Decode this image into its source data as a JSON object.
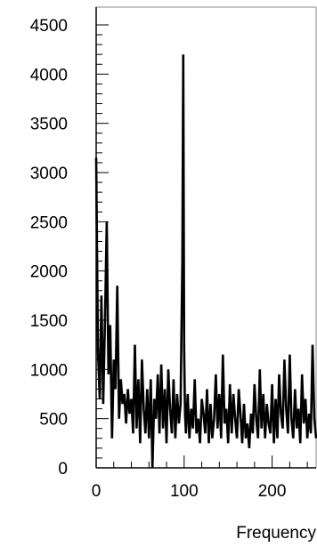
{
  "chart_data": {
    "type": "line",
    "title": "",
    "xlabel": "Frequency",
    "ylabel": "",
    "xlim": [
      0,
      250
    ],
    "ylim": [
      0,
      4600
    ],
    "x_ticks": [
      0,
      100,
      200
    ],
    "x_tick_labels": [
      "0",
      "100",
      "200"
    ],
    "y_ticks": [
      0,
      500,
      1000,
      1500,
      2000,
      2500,
      3000,
      3500,
      4000,
      4500
    ],
    "y_tick_labels": [
      "0",
      "500",
      "1000",
      "1500",
      "2000",
      "2500",
      "3000",
      "3500",
      "4000",
      "4500"
    ],
    "grid": false,
    "series": [
      {
        "color": "#000000",
        "x": [
          0,
          2,
          4,
          6,
          8,
          10,
          12,
          14,
          16,
          18,
          20,
          22,
          24,
          26,
          28,
          30,
          32,
          34,
          36,
          38,
          40,
          42,
          44,
          46,
          48,
          50,
          52,
          54,
          56,
          58,
          60,
          62,
          64,
          66,
          68,
          70,
          72,
          74,
          76,
          78,
          80,
          82,
          84,
          86,
          88,
          90,
          92,
          94,
          96,
          98,
          99,
          100,
          101,
          102,
          104,
          106,
          108,
          110,
          112,
          114,
          116,
          118,
          120,
          122,
          124,
          126,
          128,
          130,
          132,
          134,
          136,
          138,
          140,
          142,
          144,
          146,
          148,
          150,
          152,
          154,
          156,
          158,
          160,
          162,
          164,
          166,
          168,
          170,
          172,
          174,
          176,
          178,
          180,
          182,
          184,
          186,
          188,
          190,
          192,
          194,
          196,
          198,
          200,
          202,
          204,
          206,
          208,
          210,
          212,
          214,
          216,
          218,
          220,
          222,
          224,
          226,
          228,
          230,
          232,
          234,
          236,
          238,
          240,
          242,
          244,
          246,
          248,
          250
        ],
        "values": [
          3150,
          1200,
          700,
          1750,
          650,
          1500,
          2500,
          950,
          1450,
          300,
          1100,
          800,
          1850,
          500,
          900,
          650,
          750,
          450,
          800,
          550,
          700,
          350,
          1250,
          400,
          900,
          250,
          1100,
          600,
          350,
          800,
          300,
          900,
          0,
          700,
          500,
          950,
          350,
          1050,
          400,
          800,
          250,
          1000,
          600,
          350,
          900,
          300,
          750,
          450,
          650,
          2100,
          4200,
          1200,
          550,
          350,
          750,
          300,
          600,
          400,
          900,
          350,
          500,
          250,
          700,
          550,
          350,
          800,
          250,
          650,
          300,
          500,
          950,
          400,
          750,
          300,
          1150,
          450,
          600,
          250,
          850,
          350,
          750,
          500,
          300,
          800,
          550,
          250,
          650,
          300,
          450,
          200,
          550,
          350,
          850,
          500,
          300,
          1000,
          400,
          750,
          300,
          650,
          450,
          350,
          850,
          250,
          700,
          300,
          950,
          550,
          400,
          1100,
          600,
          350,
          1150,
          500,
          300,
          800,
          400,
          600,
          250,
          950,
          450,
          700,
          300,
          550,
          350,
          1250,
          500,
          300
        ]
      }
    ]
  }
}
